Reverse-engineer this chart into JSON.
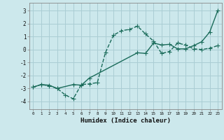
{
  "title": "",
  "xlabel": "Humidex (Indice chaleur)",
  "background_color": "#cce8ec",
  "grid_color": "#aacdd4",
  "line_color": "#1a6b5a",
  "xlim": [
    -0.5,
    23.5
  ],
  "ylim": [
    -4.6,
    3.6
  ],
  "xticks": [
    0,
    1,
    2,
    3,
    4,
    5,
    6,
    7,
    8,
    9,
    10,
    11,
    12,
    13,
    14,
    15,
    16,
    17,
    18,
    19,
    20,
    21,
    22,
    23
  ],
  "yticks": [
    -4,
    -3,
    -2,
    -1,
    0,
    1,
    2,
    3
  ],
  "curve1_x": [
    0,
    1,
    2,
    3,
    4,
    5,
    6,
    7,
    8,
    9,
    10,
    11,
    12,
    13,
    14,
    15,
    16,
    17,
    18,
    19,
    20,
    21,
    22,
    23
  ],
  "curve1_y": [
    -2.9,
    -2.7,
    -2.8,
    -3.0,
    -3.5,
    -3.8,
    -2.7,
    -2.65,
    -2.55,
    -0.25,
    1.1,
    1.45,
    1.55,
    1.8,
    1.2,
    0.65,
    -0.3,
    -0.15,
    0.5,
    0.35,
    0.05,
    0.0,
    0.1,
    0.3
  ],
  "curve2_x": [
    0,
    1,
    2,
    3,
    5,
    6,
    7,
    13,
    14,
    15,
    16,
    17,
    18,
    19,
    20,
    21,
    22,
    23
  ],
  "curve2_y": [
    -2.9,
    -2.7,
    -2.75,
    -3.0,
    -2.7,
    -2.75,
    -2.2,
    -0.25,
    -0.3,
    0.5,
    0.35,
    0.4,
    0.05,
    0.05,
    0.3,
    0.6,
    1.35,
    3.0
  ],
  "markersize": 2.5,
  "linewidth": 1.0
}
